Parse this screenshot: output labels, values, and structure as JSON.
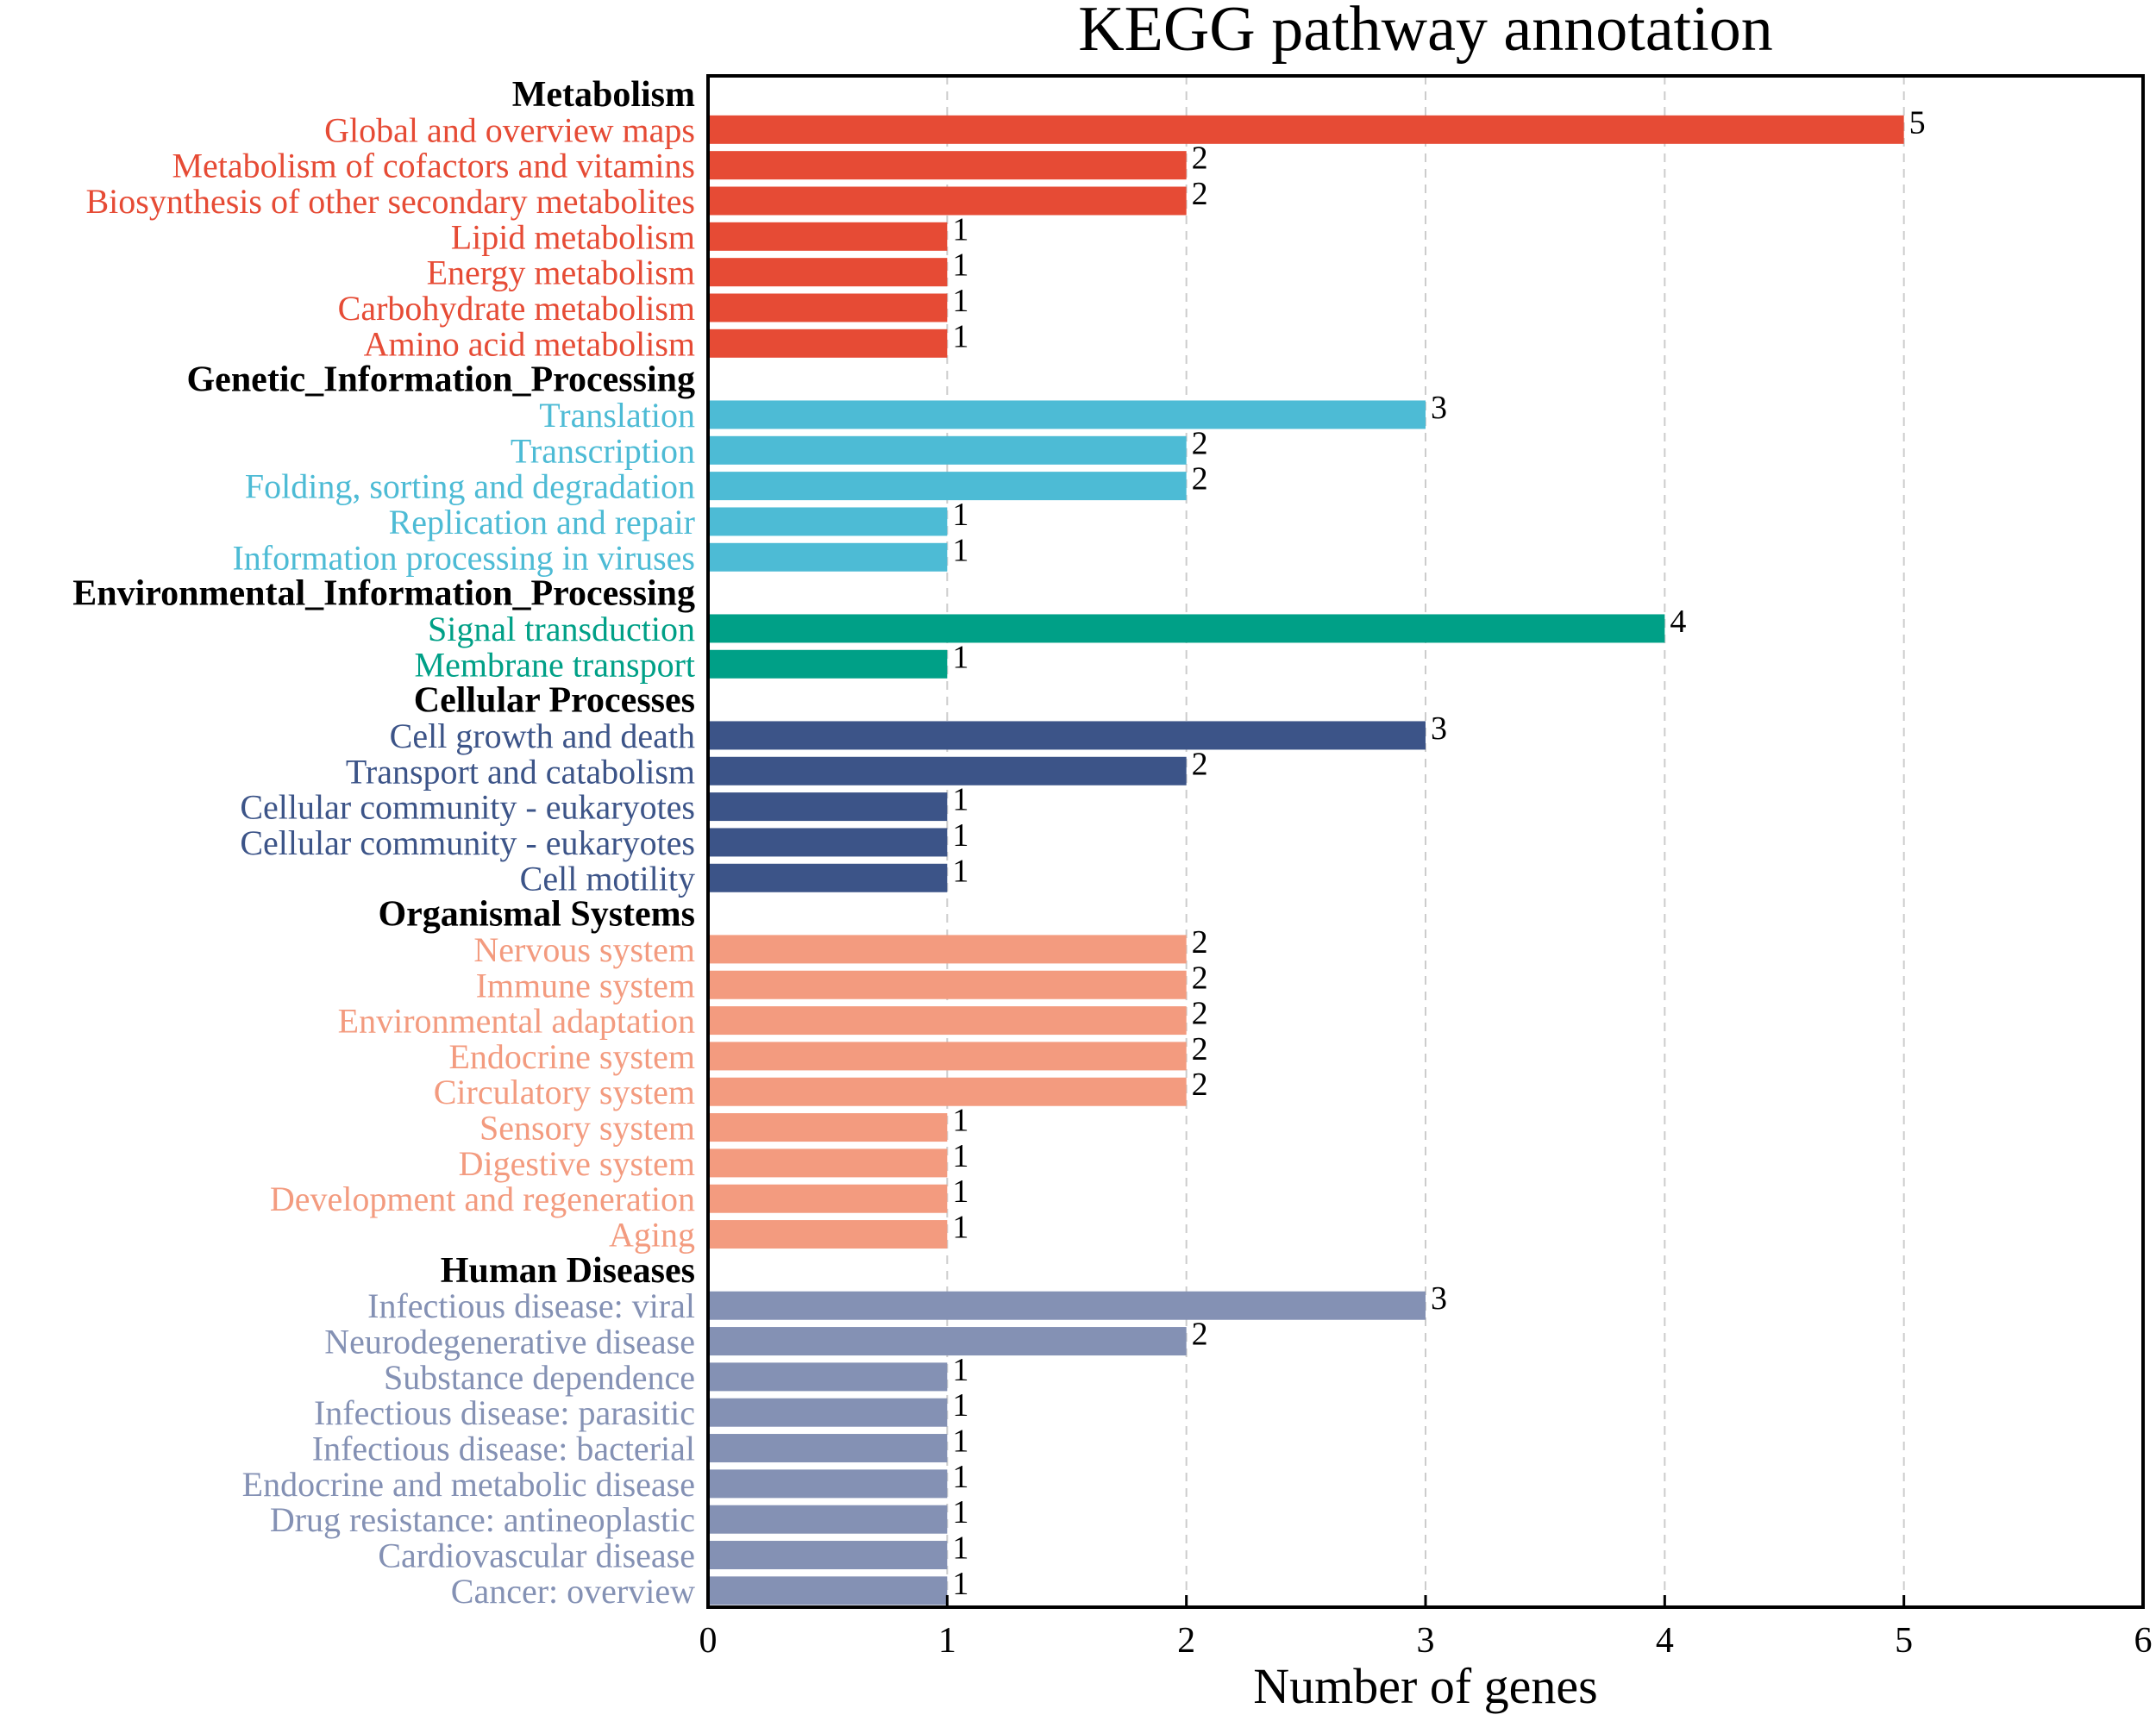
{
  "chart_data": {
    "type": "bar",
    "orientation": "horizontal",
    "title": "KEGG pathway annotation",
    "xlabel": "Number of genes",
    "ylabel": "",
    "xlim": [
      0,
      6
    ],
    "xticks": [
      "0",
      "1",
      "2",
      "3",
      "4",
      "5",
      "6"
    ],
    "grid": "vertical dashed",
    "groups": [
      {
        "name": "Metabolism",
        "color": "#E64B35",
        "items": [
          {
            "label": "Global and overview maps",
            "value": 5
          },
          {
            "label": "Metabolism of cofactors and vitamins",
            "value": 2
          },
          {
            "label": "Biosynthesis of other secondary metabolites",
            "value": 2
          },
          {
            "label": "Lipid metabolism",
            "value": 1
          },
          {
            "label": "Energy metabolism",
            "value": 1
          },
          {
            "label": "Carbohydrate metabolism",
            "value": 1
          },
          {
            "label": "Amino acid metabolism",
            "value": 1
          }
        ]
      },
      {
        "name": "Genetic_Information_Processing",
        "color": "#4DBBD5",
        "items": [
          {
            "label": "Translation",
            "value": 3
          },
          {
            "label": "Transcription",
            "value": 2
          },
          {
            "label": "Folding, sorting and degradation",
            "value": 2
          },
          {
            "label": "Replication and repair",
            "value": 1
          },
          {
            "label": "Information processing in viruses",
            "value": 1
          }
        ]
      },
      {
        "name": "Environmental_Information_Processing",
        "color": "#00A087",
        "items": [
          {
            "label": "Signal transduction",
            "value": 4
          },
          {
            "label": "Membrane transport",
            "value": 1
          }
        ]
      },
      {
        "name": "Cellular Processes",
        "color": "#3C5488",
        "items": [
          {
            "label": "Cell growth and death",
            "value": 3
          },
          {
            "label": "Transport and catabolism",
            "value": 2
          },
          {
            "label": "Cellular community - eukaryotes",
            "value": 1
          },
          {
            "label": "Cellular community - eukaryotes",
            "value": 1
          },
          {
            "label": "Cell motility",
            "value": 1
          }
        ]
      },
      {
        "name": "Organismal Systems",
        "color": "#F39B7F",
        "items": [
          {
            "label": "Nervous system",
            "value": 2
          },
          {
            "label": "Immune system",
            "value": 2
          },
          {
            "label": "Environmental adaptation",
            "value": 2
          },
          {
            "label": "Endocrine system",
            "value": 2
          },
          {
            "label": "Circulatory system",
            "value": 2
          },
          {
            "label": "Sensory system",
            "value": 1
          },
          {
            "label": "Digestive system",
            "value": 1
          },
          {
            "label": "Development and regeneration",
            "value": 1
          },
          {
            "label": "Aging",
            "value": 1
          }
        ]
      },
      {
        "name": "Human Diseases",
        "color": "#8491B4",
        "items": [
          {
            "label": "Infectious disease: viral",
            "value": 3
          },
          {
            "label": "Neurodegenerative disease",
            "value": 2
          },
          {
            "label": "Substance dependence",
            "value": 1
          },
          {
            "label": "Infectious disease: parasitic",
            "value": 1
          },
          {
            "label": "Infectious disease: bacterial",
            "value": 1
          },
          {
            "label": "Endocrine and metabolic disease",
            "value": 1
          },
          {
            "label": "Drug resistance: antineoplastic",
            "value": 1
          },
          {
            "label": "Cardiovascular disease",
            "value": 1
          },
          {
            "label": "Cancer: overview",
            "value": 1
          }
        ]
      }
    ]
  }
}
